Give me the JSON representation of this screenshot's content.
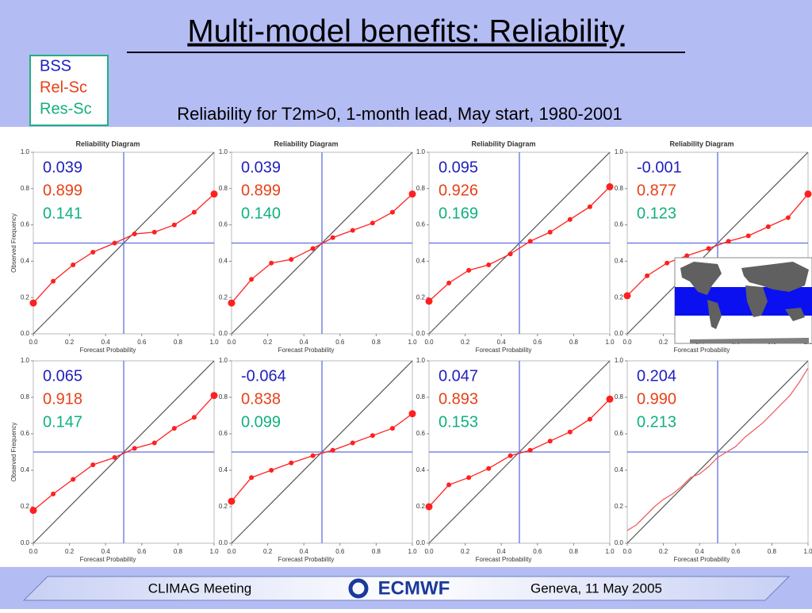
{
  "title": "Multi-model benefits: Reliability",
  "subtitle": "Reliability for T2m>0, 1-month lead, May start, 1980-2001",
  "score_legend": [
    {
      "name": "BSS",
      "color": "#2020c0"
    },
    {
      "name": "Rel-Sc",
      "color": "#e84018"
    },
    {
      "name": "Res-Sc",
      "color": "#10b080"
    }
  ],
  "footer": {
    "left": "CLIMAG Meeting",
    "logo": "ECMWF",
    "right": "Geneva, 11 May 2005"
  },
  "chart_data": [
    {
      "type": "line",
      "title": "Reliability Diagram",
      "xlabel": "Forecast Probability",
      "ylabel": "Observed Frequency",
      "x": [
        0,
        0.11,
        0.22,
        0.33,
        0.45,
        0.56,
        0.67,
        0.78,
        0.89,
        1.0
      ],
      "series": [
        {
          "color": "#ff2020",
          "values": [
            0.17,
            0.29,
            0.38,
            0.45,
            0.5,
            0.55,
            0.56,
            0.6,
            0.67,
            0.77
          ]
        }
      ],
      "xlim": [
        0,
        1
      ],
      "ylim": [
        0,
        1
      ],
      "reference": 0.5,
      "markers": true,
      "xticks": [
        {
          "value": 0,
          "label": "0.0"
        },
        0.2,
        0.4,
        0.6,
        0.8,
        {
          "value": 1,
          "label": "1.0"
        }
      ],
      "yticks": [
        {
          "value": 0,
          "label": "0.0"
        },
        0.2,
        0.4,
        0.6,
        0.8,
        {
          "value": 1,
          "label": "1.0"
        }
      ],
      "scores": {
        "values": [
          0.039,
          0.899,
          0.141
        ],
        "value_labels": [
          "0.039",
          "0.899",
          "0.141"
        ]
      }
    },
    {
      "type": "line",
      "title": "Reliability Diagram",
      "xlabel": "Forecast Probability",
      "x": [
        0,
        0.11,
        0.22,
        0.33,
        0.45,
        0.56,
        0.67,
        0.78,
        0.89,
        1.0
      ],
      "series": [
        {
          "color": "#ff2020",
          "values": [
            0.17,
            0.3,
            0.39,
            0.41,
            0.47,
            0.53,
            0.57,
            0.61,
            0.67,
            0.77
          ]
        }
      ],
      "xlim": [
        0,
        1
      ],
      "ylim": [
        0,
        1
      ],
      "reference": 0.5,
      "markers": true,
      "xticks": [
        {
          "value": 0,
          "label": "0.0"
        },
        0.2,
        0.4,
        0.6,
        0.8,
        {
          "value": 1,
          "label": "1.0"
        }
      ],
      "yticks": [
        {
          "value": 0,
          "label": "0.0"
        },
        0.2,
        0.4,
        0.6,
        0.8,
        {
          "value": 1,
          "label": "1.0"
        }
      ],
      "scores": {
        "values": [
          0.039,
          0.899,
          0.14
        ],
        "value_labels": [
          "0.039",
          "0.899",
          "0.140"
        ]
      }
    },
    {
      "type": "line",
      "title": "Reliability Diagram",
      "xlabel": "Forecast Probability",
      "x": [
        0,
        0.11,
        0.22,
        0.33,
        0.45,
        0.56,
        0.67,
        0.78,
        0.89,
        1.0
      ],
      "series": [
        {
          "color": "#ff2020",
          "values": [
            0.18,
            0.28,
            0.35,
            0.38,
            0.44,
            0.51,
            0.56,
            0.63,
            0.7,
            0.81
          ]
        }
      ],
      "xlim": [
        0,
        1
      ],
      "ylim": [
        0,
        1
      ],
      "reference": 0.5,
      "markers": true,
      "xticks": [
        {
          "value": 0,
          "label": "0.0"
        },
        0.2,
        0.4,
        0.6,
        0.8,
        {
          "value": 1,
          "label": "1.0"
        }
      ],
      "yticks": [
        {
          "value": 0,
          "label": "0.0"
        },
        0.2,
        0.4,
        0.6,
        0.8,
        {
          "value": 1,
          "label": "1.0"
        }
      ],
      "scores": {
        "values": [
          0.095,
          0.926,
          0.169
        ],
        "value_labels": [
          "0.095",
          "0.926",
          "0.169"
        ]
      }
    },
    {
      "type": "line",
      "title": "Reliability Diagram",
      "xlabel": "Forecast Probability",
      "x": [
        0,
        0.11,
        0.22,
        0.33,
        0.45,
        0.56,
        0.67,
        0.78,
        0.89,
        1.0
      ],
      "series": [
        {
          "color": "#ff2020",
          "values": [
            0.21,
            0.32,
            0.39,
            0.43,
            0.47,
            0.51,
            0.54,
            0.59,
            0.64,
            0.77
          ]
        }
      ],
      "xlim": [
        0,
        1
      ],
      "ylim": [
        0,
        1
      ],
      "reference": 0.5,
      "markers": true,
      "xticks": [
        {
          "value": 0,
          "label": "0.0"
        },
        0.2,
        0.4,
        0.6,
        0.8,
        {
          "value": 1,
          "label": "1.0"
        }
      ],
      "yticks": [
        {
          "value": 0,
          "label": "0.0"
        },
        0.2,
        0.4,
        0.6,
        0.8,
        {
          "value": 1,
          "label": "1.0"
        }
      ],
      "scores": {
        "values": [
          -0.001,
          0.877,
          0.123
        ],
        "value_labels": [
          "-0.001",
          "0.877",
          "0.123"
        ]
      }
    },
    {
      "type": "line",
      "xlabel": "Forecast Probability",
      "ylabel": "Observed Frequency",
      "x": [
        0,
        0.11,
        0.22,
        0.33,
        0.45,
        0.56,
        0.67,
        0.78,
        0.89,
        1.0
      ],
      "series": [
        {
          "color": "#ff2020",
          "values": [
            0.18,
            0.27,
            0.35,
            0.43,
            0.47,
            0.52,
            0.55,
            0.63,
            0.69,
            0.81
          ]
        }
      ],
      "xlim": [
        0,
        1
      ],
      "ylim": [
        0,
        1
      ],
      "reference": 0.5,
      "markers": true,
      "xticks": [
        {
          "value": 0,
          "label": "0.0"
        },
        0.2,
        0.4,
        0.6,
        0.8,
        {
          "value": 1,
          "label": "1.0"
        }
      ],
      "yticks": [
        {
          "value": 0,
          "label": "0.0"
        },
        0.2,
        0.4,
        0.6,
        0.8,
        {
          "value": 1,
          "label": "1.0"
        }
      ],
      "scores": {
        "values": [
          0.065,
          0.918,
          0.147
        ],
        "value_labels": [
          "0.065",
          "0.918",
          "0.147"
        ]
      }
    },
    {
      "type": "line",
      "xlabel": "Forecast Probability",
      "x": [
        0,
        0.11,
        0.22,
        0.33,
        0.45,
        0.56,
        0.67,
        0.78,
        0.89,
        1.0
      ],
      "series": [
        {
          "color": "#ff2020",
          "values": [
            0.23,
            0.36,
            0.4,
            0.44,
            0.48,
            0.51,
            0.55,
            0.59,
            0.63,
            0.71
          ]
        }
      ],
      "xlim": [
        0,
        1
      ],
      "ylim": [
        0,
        1
      ],
      "reference": 0.5,
      "markers": true,
      "xticks": [
        {
          "value": 0,
          "label": "0.0"
        },
        0.2,
        0.4,
        0.6,
        0.8,
        {
          "value": 1,
          "label": "1.0"
        }
      ],
      "yticks": [
        {
          "value": 0,
          "label": "0.0"
        },
        0.2,
        0.4,
        0.6,
        0.8,
        {
          "value": 1,
          "label": "1.0"
        }
      ],
      "scores": {
        "values": [
          -0.064,
          0.838,
          0.099
        ],
        "value_labels": [
          "-0.064",
          "0.838",
          "0.099"
        ]
      }
    },
    {
      "type": "line",
      "xlabel": "Forecast Probability",
      "x": [
        0,
        0.11,
        0.22,
        0.33,
        0.45,
        0.56,
        0.67,
        0.78,
        0.89,
        1.0
      ],
      "series": [
        {
          "color": "#ff2020",
          "values": [
            0.2,
            0.32,
            0.36,
            0.41,
            0.48,
            0.51,
            0.56,
            0.61,
            0.68,
            0.79
          ]
        }
      ],
      "xlim": [
        0,
        1
      ],
      "ylim": [
        0,
        1
      ],
      "reference": 0.5,
      "markers": true,
      "xticks": [
        {
          "value": 0,
          "label": "0.0"
        },
        0.2,
        0.4,
        0.6,
        0.8,
        {
          "value": 1,
          "label": "1.0"
        }
      ],
      "yticks": [
        {
          "value": 0,
          "label": "0.0"
        },
        0.2,
        0.4,
        0.6,
        0.8,
        {
          "value": 1,
          "label": "1.0"
        }
      ],
      "scores": {
        "values": [
          0.047,
          0.893,
          0.153
        ],
        "value_labels": [
          "0.047",
          "0.893",
          "0.153"
        ]
      }
    },
    {
      "type": "line",
      "xlabel": "Forecast Probability",
      "x": [
        0,
        0.05,
        0.1,
        0.15,
        0.2,
        0.25,
        0.3,
        0.35,
        0.4,
        0.45,
        0.5,
        0.55,
        0.6,
        0.65,
        0.7,
        0.75,
        0.8,
        0.85,
        0.9,
        0.95,
        1.0
      ],
      "series": [
        {
          "color": "#f06060",
          "values": [
            0.07,
            0.1,
            0.15,
            0.2,
            0.24,
            0.27,
            0.31,
            0.36,
            0.38,
            0.42,
            0.47,
            0.5,
            0.53,
            0.58,
            0.62,
            0.66,
            0.71,
            0.76,
            0.81,
            0.88,
            0.96
          ]
        }
      ],
      "xlim": [
        0,
        1
      ],
      "ylim": [
        0,
        1
      ],
      "reference": 0.5,
      "markers": false,
      "xticks": [
        {
          "value": 0,
          "label": "0.0"
        },
        0.2,
        0.4,
        0.6,
        0.8,
        {
          "value": 1,
          "label": "1.0"
        }
      ],
      "yticks": [
        {
          "value": 0,
          "label": "0.0"
        },
        0.2,
        0.4,
        0.6,
        0.8,
        {
          "value": 1,
          "label": "1.0"
        }
      ],
      "scores": {
        "values": [
          0.204,
          0.99,
          0.213
        ],
        "value_labels": [
          "0.204",
          "0.990",
          "0.213"
        ]
      }
    }
  ]
}
